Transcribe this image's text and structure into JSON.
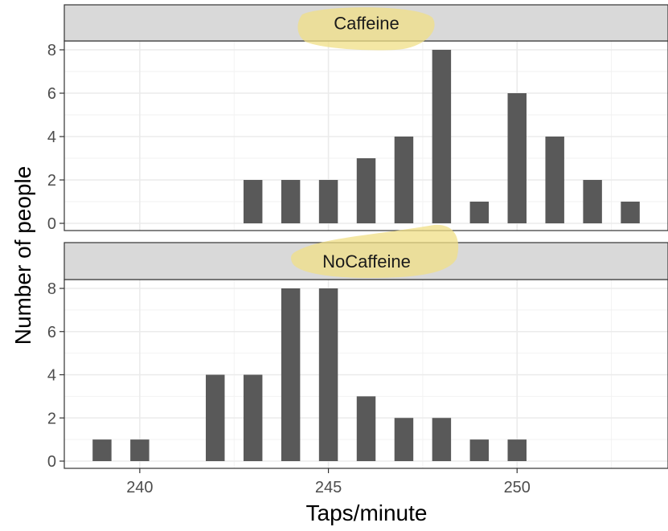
{
  "chart_data": {
    "type": "bar",
    "xlabel": "Taps/minute",
    "ylabel": "Number of people",
    "x_ticks": [
      240,
      245,
      250
    ],
    "y_ticks": [
      0,
      2,
      4,
      6,
      8
    ],
    "xlim": [
      238,
      254
    ],
    "ylim": [
      0,
      8.4
    ],
    "grid": true,
    "bar_color": "#595959",
    "strip_fill": "#d9d9d9",
    "highlight_color": "#f0df86",
    "panels": [
      {
        "name": "Caffeine",
        "x": [
          243,
          244,
          245,
          246,
          247,
          248,
          249,
          250,
          251,
          252,
          253
        ],
        "values": [
          2,
          2,
          2,
          3,
          4,
          8,
          1,
          6,
          4,
          2,
          1
        ]
      },
      {
        "name": "NoCaffeine",
        "x": [
          239,
          240,
          242,
          243,
          244,
          245,
          246,
          247,
          248,
          249,
          250
        ],
        "values": [
          1,
          1,
          4,
          4,
          8,
          8,
          3,
          2,
          2,
          1,
          1
        ]
      }
    ]
  }
}
